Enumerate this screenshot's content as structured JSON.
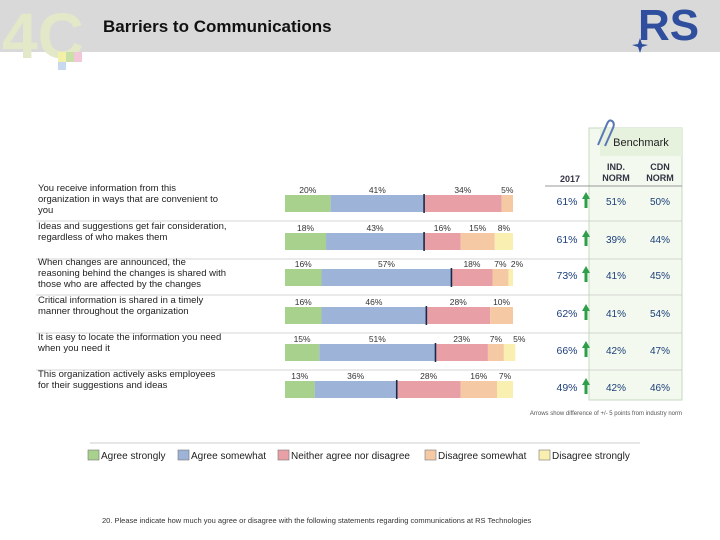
{
  "header": {
    "title": "Barriers to Communications"
  },
  "logo": {
    "left_text": "4C",
    "right_text": "RS"
  },
  "colors": {
    "agree_strongly": "#a9d18e",
    "agree_somewhat": "#9db3d8",
    "neutral": "#e8a0a6",
    "disagree_somewhat": "#f6c9a5",
    "disagree_strongly": "#f8efb0",
    "score_green": "#2e9e4a"
  },
  "benchmark": {
    "label": "Benchmark",
    "col_2017": "2017",
    "col_ind": [
      "IND.",
      "NORM"
    ],
    "col_cdn": [
      "CDN",
      "NORM"
    ]
  },
  "note": "Arrows show difference of +/- 5 points from industry norm",
  "footer": "20. Please indicate how much you agree or disagree with the following statements regarding communications at RS Technologies",
  "chart_data": {
    "type": "bar",
    "orientation": "horizontal-stacked-100",
    "legend_position": "bottom",
    "series": [
      {
        "name": "Agree strongly"
      },
      {
        "name": "Agree somewhat"
      },
      {
        "name": "Neither agree nor disagree"
      },
      {
        "name": "Disagree somewhat"
      },
      {
        "name": "Disagree strongly"
      }
    ],
    "rows": [
      {
        "label": [
          "You receive information from this",
          "organization in ways that are convenient to",
          "you"
        ],
        "values": [
          20,
          41,
          34,
          5,
          0
        ],
        "labels": [
          "20%",
          "41%",
          "34%",
          "5%",
          ""
        ],
        "score": "61%",
        "ind": "51%",
        "cdn": "50%",
        "arrow": true
      },
      {
        "label": [
          "Ideas and suggestions get fair consideration,",
          "regardless of who makes them"
        ],
        "values": [
          18,
          43,
          16,
          15,
          8
        ],
        "labels": [
          "18%",
          "43%",
          "16%",
          "15%",
          "8%"
        ],
        "score": "61%",
        "ind": "39%",
        "cdn": "44%",
        "arrow": true
      },
      {
        "label": [
          "When changes are announced, the",
          "reasoning behind the changes is shared with",
          "those who are affected by the changes"
        ],
        "values": [
          16,
          57,
          18,
          7,
          2
        ],
        "labels": [
          "16%",
          "57%",
          "18%",
          "7%",
          "2%"
        ],
        "score": "73%",
        "ind": "41%",
        "cdn": "45%",
        "arrow": true
      },
      {
        "label": [
          "Critical information is shared in a timely",
          "manner throughout the organization"
        ],
        "values": [
          16,
          46,
          28,
          10,
          0
        ],
        "labels": [
          "16%",
          "46%",
          "28%",
          "10%",
          ""
        ],
        "score": "62%",
        "ind": "41%",
        "cdn": "54%",
        "arrow": true
      },
      {
        "label": [
          "It is easy to locate the information you need",
          "when you need it"
        ],
        "values": [
          15,
          51,
          23,
          7,
          5
        ],
        "labels": [
          "15%",
          "51%",
          "23%",
          "7%",
          "5%"
        ],
        "score": "66%",
        "ind": "42%",
        "cdn": "47%",
        "arrow": true
      },
      {
        "label": [
          "This organization actively asks employees",
          "for their suggestions and ideas"
        ],
        "values": [
          13,
          36,
          28,
          16,
          7
        ],
        "labels": [
          "13%",
          "36%",
          "28%",
          "16%",
          "7%"
        ],
        "score": "49%",
        "ind": "42%",
        "cdn": "46%",
        "arrow": true
      }
    ]
  }
}
